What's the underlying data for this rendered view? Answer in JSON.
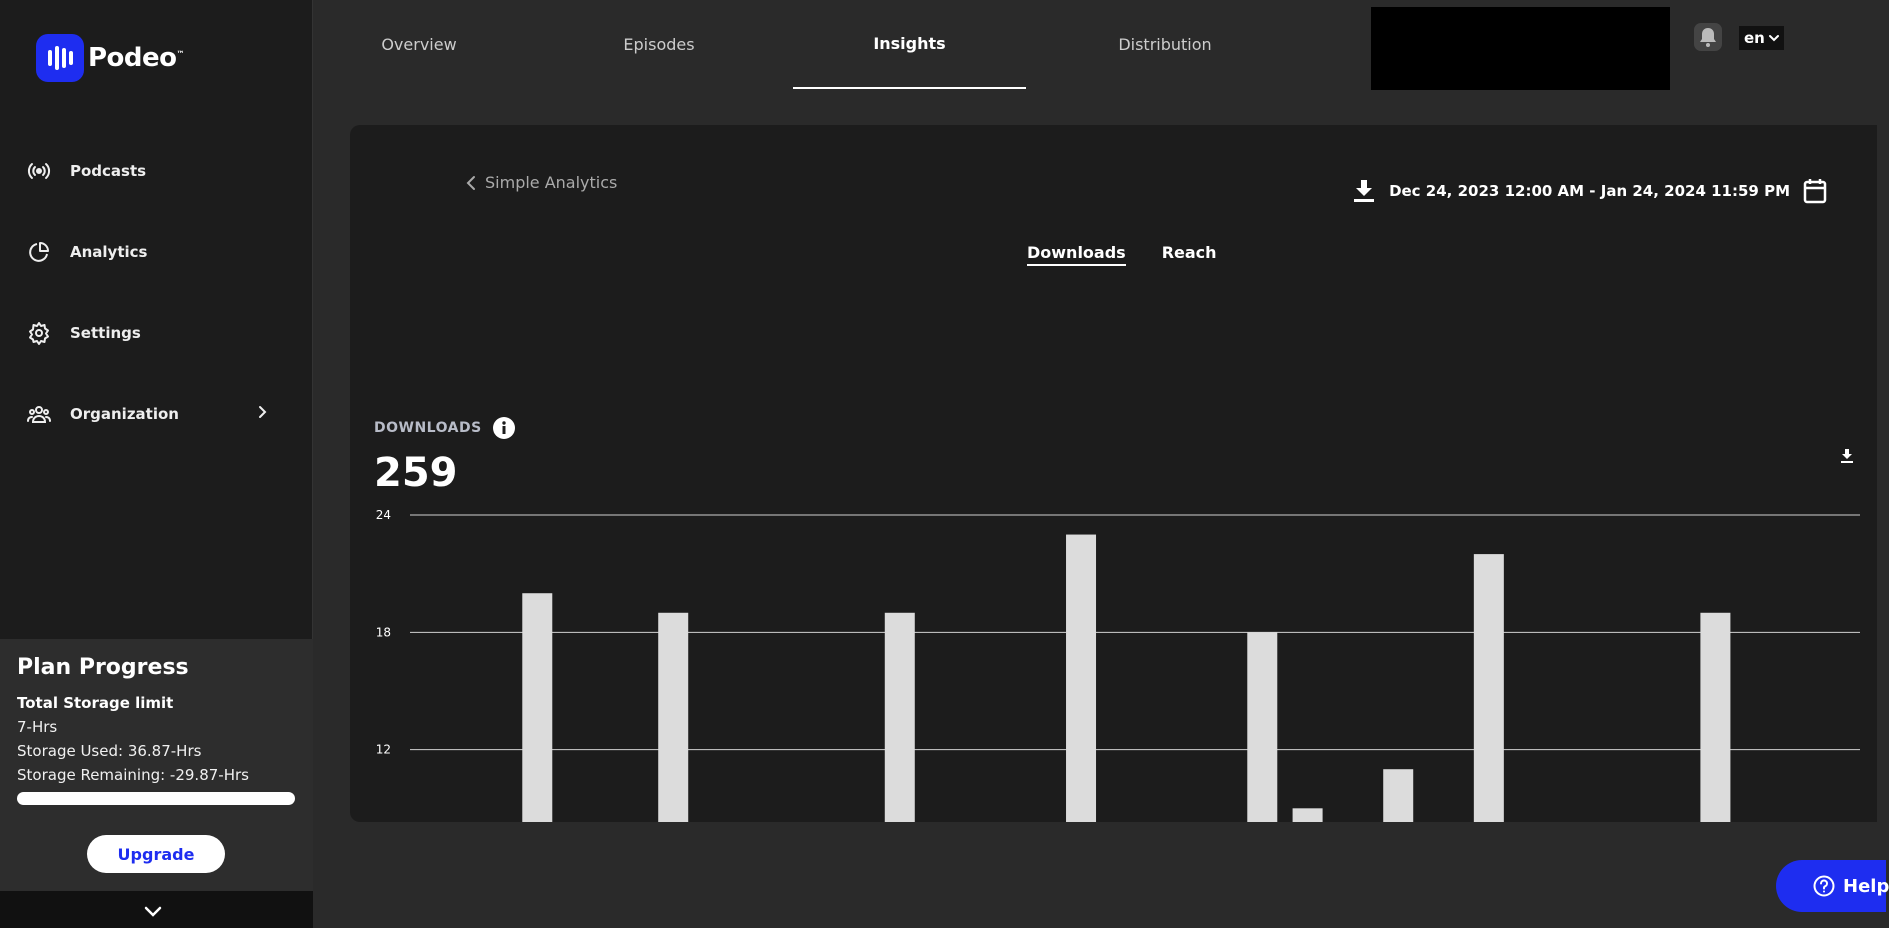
{
  "brand": {
    "name": "Podeo",
    "tm": "™"
  },
  "sidebar": {
    "items": [
      {
        "label": "Podcasts"
      },
      {
        "label": "Analytics"
      },
      {
        "label": "Settings"
      },
      {
        "label": "Organization"
      }
    ]
  },
  "plan": {
    "title": "Plan Progress",
    "limit_label": "Total Storage limit",
    "limit_value": "7-Hrs",
    "used": "Storage Used: 36.87-Hrs",
    "remaining": "Storage Remaining: -29.87-Hrs",
    "progress": 1.0,
    "upgrade_label": "Upgrade"
  },
  "tabs": [
    {
      "label": "Overview"
    },
    {
      "label": "Episodes"
    },
    {
      "label": "Insights"
    },
    {
      "label": "Distribution"
    }
  ],
  "language": "en",
  "card": {
    "back_label": "Simple Analytics",
    "date_range": "Dec 24, 2023 12:00 AM - Jan 24, 2024 11:59 PM",
    "subtabs": [
      {
        "label": "Downloads"
      },
      {
        "label": "Reach"
      }
    ],
    "downloads_label": "DOWNLOADS",
    "downloads_total": "259"
  },
  "chart_data": {
    "type": "bar",
    "ylim": [
      8.3,
      24
    ],
    "yticks": [
      12,
      18,
      24
    ],
    "grid": true,
    "bars": [
      {
        "x": 2,
        "value": 20
      },
      {
        "x": 5,
        "value": 19
      },
      {
        "x": 10,
        "value": 19
      },
      {
        "x": 14,
        "value": 23
      },
      {
        "x": 18,
        "value": 18
      },
      {
        "x": 19,
        "value": 9
      },
      {
        "x": 21,
        "value": 11
      },
      {
        "x": 23,
        "value": 22
      },
      {
        "x": 28,
        "value": 19
      }
    ],
    "x_count": 32
  },
  "help": {
    "label": "Help"
  },
  "colors": {
    "accent": "#1e2df0",
    "bar": "#dcdcdc"
  }
}
